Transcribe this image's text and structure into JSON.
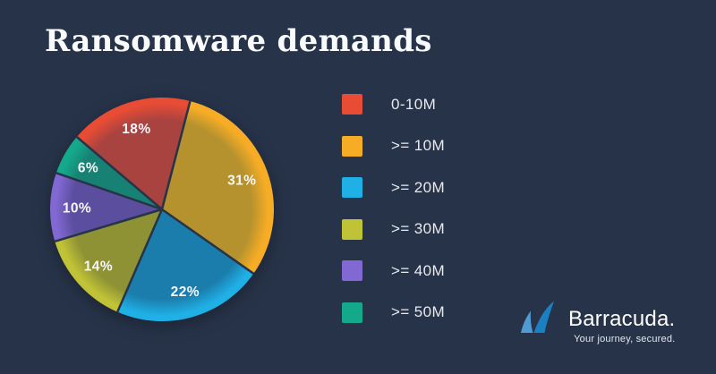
{
  "background": "#273349",
  "title": "Ransomware demands",
  "chart_data": {
    "type": "pie",
    "title": "Ransomware demands",
    "start_angle_deg": -49.6,
    "value_suffix": "%",
    "legend_position": "right",
    "label_color": "#f4f6f8",
    "slices": [
      {
        "label": "0-10M",
        "percent": 18,
        "color": "#e84c34",
        "shade": "#a94340"
      },
      {
        "label": ">= 10M",
        "percent": 31,
        "color": "#f7ac25",
        "shade": "#b5922e"
      },
      {
        "label": ">= 20M",
        "percent": 22,
        "color": "#1fb0e6",
        "shade": "#1b7dab"
      },
      {
        "label": ">= 30M",
        "percent": 14,
        "color": "#c0c335",
        "shade": "#8e9134"
      },
      {
        "label": ">= 40M",
        "percent": 10,
        "color": "#8168d2",
        "shade": "#5b4e9e"
      },
      {
        "label": ">= 50M",
        "percent": 6,
        "color": "#14a98b",
        "shade": "#178173"
      }
    ]
  },
  "logo": {
    "name": "Barracuda",
    "wordmark": "Barracuda.",
    "tagline": "Your journey, secured.",
    "fin_front_color": "#1b7fc2",
    "fin_back_color": "#4f9cd4"
  }
}
